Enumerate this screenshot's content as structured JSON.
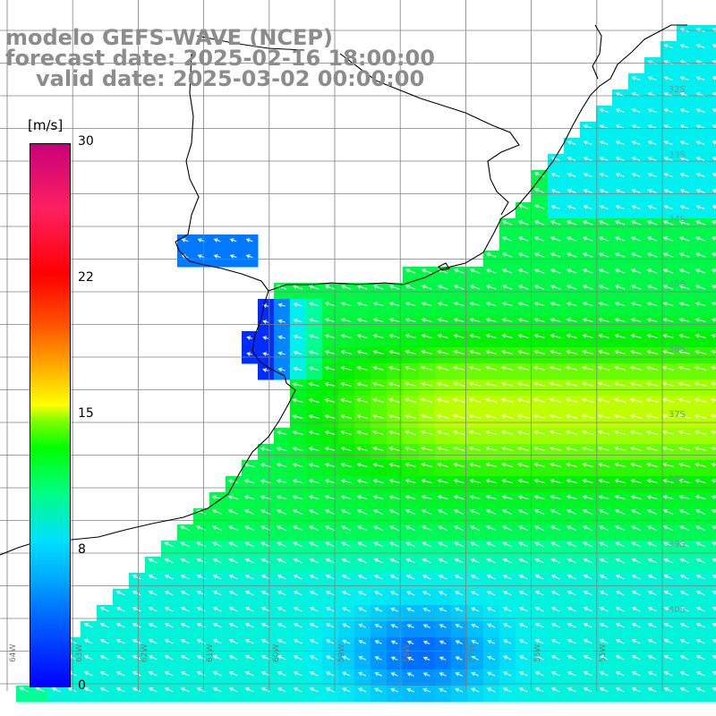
{
  "title": {
    "line1": "modelo GEFS-WAVE (NCEP)",
    "line2": "forecast date: 2025-02-16 18:00:00",
    "line3": "valid date: 2025-03-02 00:00:00"
  },
  "colorbar": {
    "unit": "[m/s]",
    "ticks": [
      "30",
      "22",
      "15",
      "8",
      "0"
    ],
    "min": 0,
    "max": 30
  },
  "latitude_labels": [
    "32S",
    "33S",
    "34S",
    "35S",
    "36S",
    "37S",
    "38S",
    "39S",
    "40S"
  ],
  "longitude_labels": [
    "64W",
    "63W",
    "62W",
    "61W",
    "60W",
    "59W",
    "58W",
    "57W",
    "56W",
    "55W"
  ],
  "colors": {
    "land": "#ffffff",
    "grid": "#808080",
    "coast": "#000000",
    "arrow": "#ffffff",
    "title": "#8c8c8c"
  }
}
